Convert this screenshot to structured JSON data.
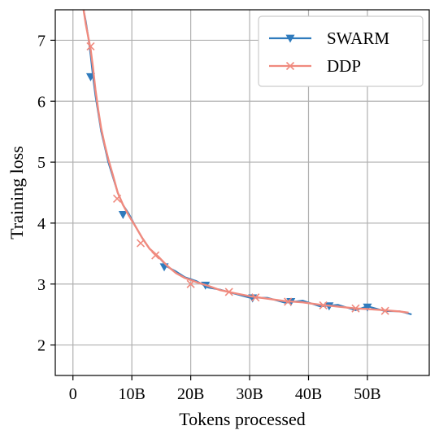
{
  "chart_data": {
    "type": "line",
    "xlabel": "Tokens processed",
    "ylabel": "Training loss",
    "xlim": [
      -3,
      60.5
    ],
    "ylim": [
      1.5,
      7.5
    ],
    "x_ticks": [
      {
        "value": 0,
        "label": "0"
      },
      {
        "value": 10,
        "label": "10B"
      },
      {
        "value": 20,
        "label": "20B"
      },
      {
        "value": 30,
        "label": "30B"
      },
      {
        "value": 40,
        "label": "40B"
      },
      {
        "value": 50,
        "label": "50B"
      }
    ],
    "y_ticks": [
      {
        "value": 2,
        "label": "2"
      },
      {
        "value": 3,
        "label": "3"
      },
      {
        "value": 4,
        "label": "4"
      },
      {
        "value": 5,
        "label": "5"
      },
      {
        "value": 6,
        "label": "6"
      },
      {
        "value": 7,
        "label": "7"
      }
    ],
    "grid": true,
    "legend_position": "top-right",
    "series": [
      {
        "name": "SWARM",
        "color": "#2f7bbd",
        "marker": "triangle-down",
        "x": [
          1.8,
          2.2,
          2.6,
          3.0,
          3.4,
          3.8,
          4.3,
          4.8,
          5.4,
          6.0,
          6.8,
          7.6,
          8.5,
          9.5,
          10.6,
          11.8,
          13.0,
          14.5,
          16.0,
          17.5,
          19.0,
          21.0,
          23.0,
          25.0,
          27.5,
          30.0,
          33.0,
          36.0,
          39.0,
          42.0,
          45.0,
          48.0,
          50.0,
          53.0,
          55.5,
          57.5
        ],
        "y": [
          7.5,
          7.3,
          7.05,
          6.75,
          6.4,
          6.1,
          5.8,
          5.5,
          5.25,
          5.0,
          4.75,
          4.5,
          4.3,
          4.15,
          3.95,
          3.75,
          3.58,
          3.45,
          3.3,
          3.18,
          3.1,
          3.03,
          2.97,
          2.9,
          2.85,
          2.8,
          2.75,
          2.72,
          2.7,
          2.66,
          2.63,
          2.6,
          2.62,
          2.57,
          2.55,
          2.53
        ],
        "marker_x": [
          3.0,
          8.5,
          15.5,
          22.5,
          30.5,
          37.0,
          43.5,
          50.0
        ],
        "marker_y": [
          6.4,
          4.14,
          3.28,
          2.98,
          2.77,
          2.71,
          2.64,
          2.62
        ]
      },
      {
        "name": "DDP",
        "color": "#f08a7e",
        "marker": "x",
        "x": [
          1.8,
          2.2,
          2.6,
          3.0,
          3.4,
          3.8,
          4.3,
          4.8,
          5.4,
          6.0,
          6.8,
          7.6,
          8.5,
          9.5,
          10.6,
          11.8,
          13.0,
          14.5,
          16.0,
          17.5,
          19.0,
          21.0,
          23.0,
          25.0,
          27.5,
          30.0,
          33.0,
          36.0,
          39.0,
          42.0,
          45.0,
          48.0,
          50.0,
          53.0,
          55.5,
          57.0
        ],
        "y": [
          7.5,
          7.25,
          7.05,
          6.85,
          6.55,
          6.2,
          5.85,
          5.55,
          5.28,
          5.05,
          4.78,
          4.5,
          4.3,
          4.12,
          3.95,
          3.75,
          3.58,
          3.45,
          3.3,
          3.18,
          3.1,
          3.03,
          2.97,
          2.9,
          2.85,
          2.8,
          2.76,
          2.72,
          2.7,
          2.66,
          2.63,
          2.6,
          2.59,
          2.57,
          2.55,
          2.53
        ],
        "marker_x": [
          3.0,
          7.5,
          11.5,
          14.0,
          20.0,
          26.5,
          31.0,
          36.5,
          42.5,
          48.0,
          53.0
        ],
        "marker_y": [
          6.9,
          4.4,
          3.67,
          3.47,
          3.0,
          2.87,
          2.78,
          2.71,
          2.65,
          2.6,
          2.56
        ]
      }
    ]
  }
}
